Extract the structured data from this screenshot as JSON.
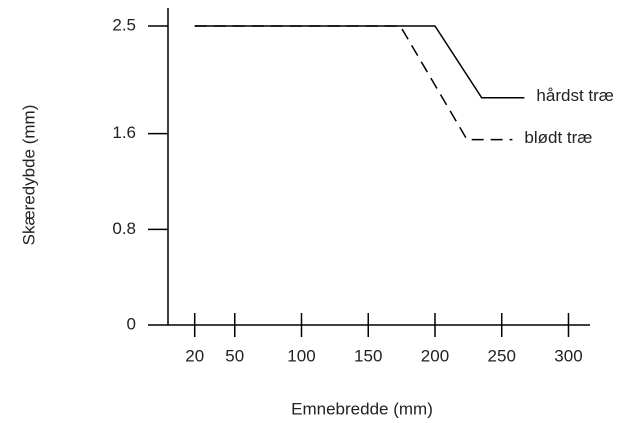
{
  "chart_data": {
    "type": "line",
    "xlabel": "Emnebredde (mm)",
    "ylabel": "Skæredybde (mm)",
    "xlim": [
      0,
      315
    ],
    "ylim": [
      0,
      2.5
    ],
    "xticks": [
      20,
      50,
      100,
      150,
      200,
      250,
      300
    ],
    "yticks": [
      0,
      0.8,
      1.6,
      2.5
    ],
    "series": [
      {
        "name": "hårdst træ",
        "color": "#000000",
        "dash": false,
        "x": [
          20,
          200,
          235,
          267
        ],
        "values": [
          2.5,
          2.5,
          1.9,
          1.9
        ]
      },
      {
        "name": "blødt træ",
        "color": "#000000",
        "dash": true,
        "x": [
          20,
          174,
          224,
          258
        ],
        "values": [
          2.5,
          2.5,
          1.55,
          1.55
        ]
      }
    ]
  }
}
